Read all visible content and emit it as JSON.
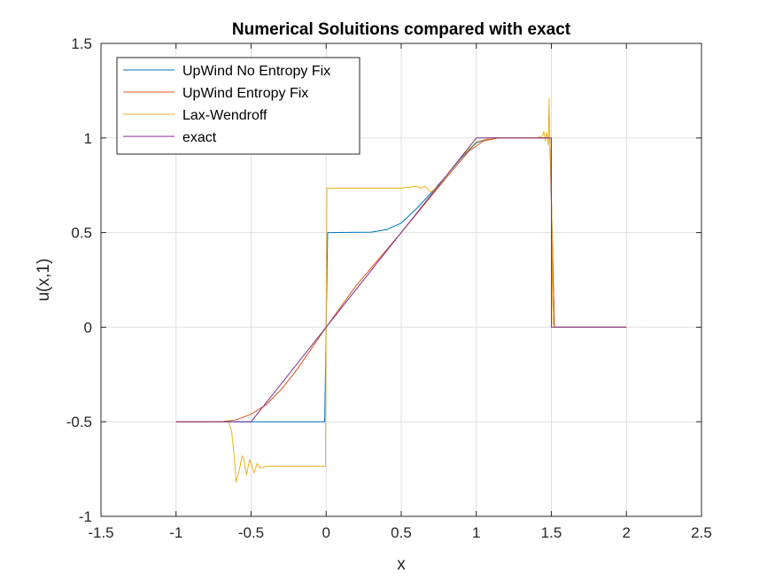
{
  "chart_data": {
    "type": "line",
    "title": "Numerical Soluitions compared with exact",
    "xlabel": "x",
    "ylabel": "u(x,1)",
    "xlim": [
      -1.5,
      2.5
    ],
    "ylim": [
      -1,
      1.5
    ],
    "xticks": [
      -1.5,
      -1,
      -0.5,
      0,
      0.5,
      1,
      1.5,
      2,
      2.5
    ],
    "yticks": [
      -1,
      -0.5,
      0,
      0.5,
      1,
      1.5
    ],
    "xtick_labels": [
      "-1.5",
      "-1",
      "-0.5",
      "0",
      "0.5",
      "1",
      "1.5",
      "2",
      "2.5"
    ],
    "ytick_labels": [
      "-1",
      "-0.5",
      "0",
      "0.5",
      "1",
      "1.5"
    ],
    "grid": true,
    "legend_position": "top-left",
    "series": [
      {
        "name": "UpWind No Entropy Fix",
        "color": "#0072BD",
        "x": [
          -1,
          -0.5,
          -0.01,
          0,
          0.01,
          0.3,
          0.4,
          0.5,
          0.6,
          0.7,
          0.8,
          0.9,
          1.0,
          1.1,
          1.2,
          1.49,
          1.505,
          1.52,
          2
        ],
        "y": [
          -0.5,
          -0.5,
          -0.5,
          0,
          0.5,
          0.502,
          0.515,
          0.55,
          0.625,
          0.71,
          0.8,
          0.895,
          0.975,
          1.0,
          1.0,
          1.0,
          0.5,
          0,
          0
        ]
      },
      {
        "name": "UpWind Entropy Fix",
        "color": "#D95319",
        "x": [
          -1,
          -0.7,
          -0.6,
          -0.5,
          -0.4,
          -0.3,
          -0.2,
          0,
          0.2,
          0.5,
          0.8,
          0.95,
          1.05,
          1.15,
          1.25,
          1.49,
          1.505,
          1.52,
          2
        ],
        "y": [
          -0.5,
          -0.5,
          -0.49,
          -0.46,
          -0.41,
          -0.33,
          -0.23,
          0,
          0.22,
          0.5,
          0.79,
          0.93,
          0.985,
          1.0,
          1.0,
          1.0,
          0.5,
          0,
          0
        ]
      },
      {
        "name": "Lax-Wendroff",
        "color": "#EDB120",
        "x": [
          -1,
          -0.65,
          -0.63,
          -0.61,
          -0.6,
          -0.58,
          -0.56,
          -0.55,
          -0.53,
          -0.51,
          -0.5,
          -0.48,
          -0.46,
          -0.44,
          -0.4,
          -0.3,
          -0.1,
          -0.005,
          0.0,
          0.005,
          0.2,
          0.4,
          0.5,
          0.55,
          0.6,
          0.63,
          0.66,
          0.68,
          0.7,
          0.75,
          0.8,
          0.9,
          1.0,
          1.1,
          1.2,
          1.3,
          1.4,
          1.44,
          1.45,
          1.46,
          1.47,
          1.48,
          1.485,
          1.49,
          1.495,
          1.5,
          1.505,
          1.51,
          1.52,
          2
        ],
        "y": [
          -0.5,
          -0.5,
          -0.55,
          -0.7,
          -0.82,
          -0.76,
          -0.68,
          -0.69,
          -0.78,
          -0.7,
          -0.72,
          -0.77,
          -0.72,
          -0.745,
          -0.735,
          -0.735,
          -0.735,
          -0.735,
          0,
          0.735,
          0.735,
          0.735,
          0.735,
          0.74,
          0.745,
          0.735,
          0.745,
          0.725,
          0.715,
          0.75,
          0.8,
          0.9,
          0.98,
          1.0,
          1.0,
          1.0,
          1.0,
          1.01,
          1.035,
          0.985,
          1.03,
          0.96,
          1.21,
          0.98,
          0.9,
          0.75,
          0.3,
          0.02,
          0,
          0
        ]
      },
      {
        "name": "exact",
        "color": "#7E2F8E",
        "x": [
          -1,
          -0.5,
          0,
          0.5,
          1,
          1.5,
          1.5,
          2
        ],
        "y": [
          -0.5,
          -0.5,
          0,
          0.5,
          1,
          1,
          0,
          0
        ]
      }
    ]
  }
}
